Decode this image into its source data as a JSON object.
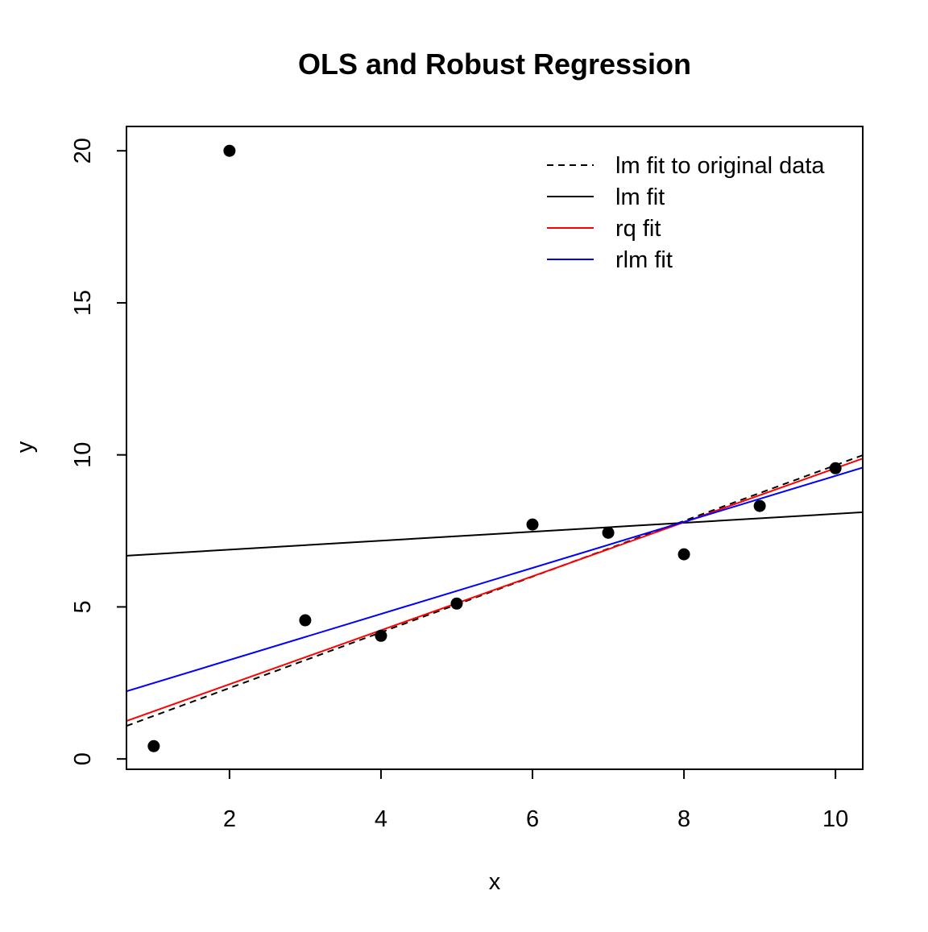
{
  "chart_data": {
    "type": "scatter",
    "title": "OLS and Robust Regression",
    "xlabel": "x",
    "ylabel": "y",
    "xlim": [
      0.64,
      10.36
    ],
    "ylim": [
      -0.34,
      20.8
    ],
    "xticks": [
      2,
      4,
      6,
      8,
      10
    ],
    "yticks": [
      0,
      5,
      10,
      15,
      20
    ],
    "grid": false,
    "legend_position": "top-right",
    "points": {
      "x": [
        1,
        2,
        3,
        4,
        5,
        6,
        7,
        8,
        9,
        10
      ],
      "y": [
        0.42,
        20.0,
        4.56,
        4.05,
        5.11,
        7.71,
        7.44,
        6.73,
        8.32,
        9.56
      ],
      "color": "#000000"
    },
    "lines": [
      {
        "name": "lm fit to original data",
        "intercept": 0.5,
        "slope": 0.916,
        "color": "#000000",
        "dash": "dashed"
      },
      {
        "name": "lm fit",
        "intercept": 6.59,
        "slope": 0.147,
        "color": "#000000",
        "dash": "solid"
      },
      {
        "name": "rq fit",
        "intercept": 0.68,
        "slope": 0.888,
        "color": "#ff0000",
        "dash": "solid"
      },
      {
        "name": "rlm fit",
        "intercept": 1.74,
        "slope": 0.757,
        "color": "#0000ff",
        "dash": "solid"
      }
    ]
  }
}
